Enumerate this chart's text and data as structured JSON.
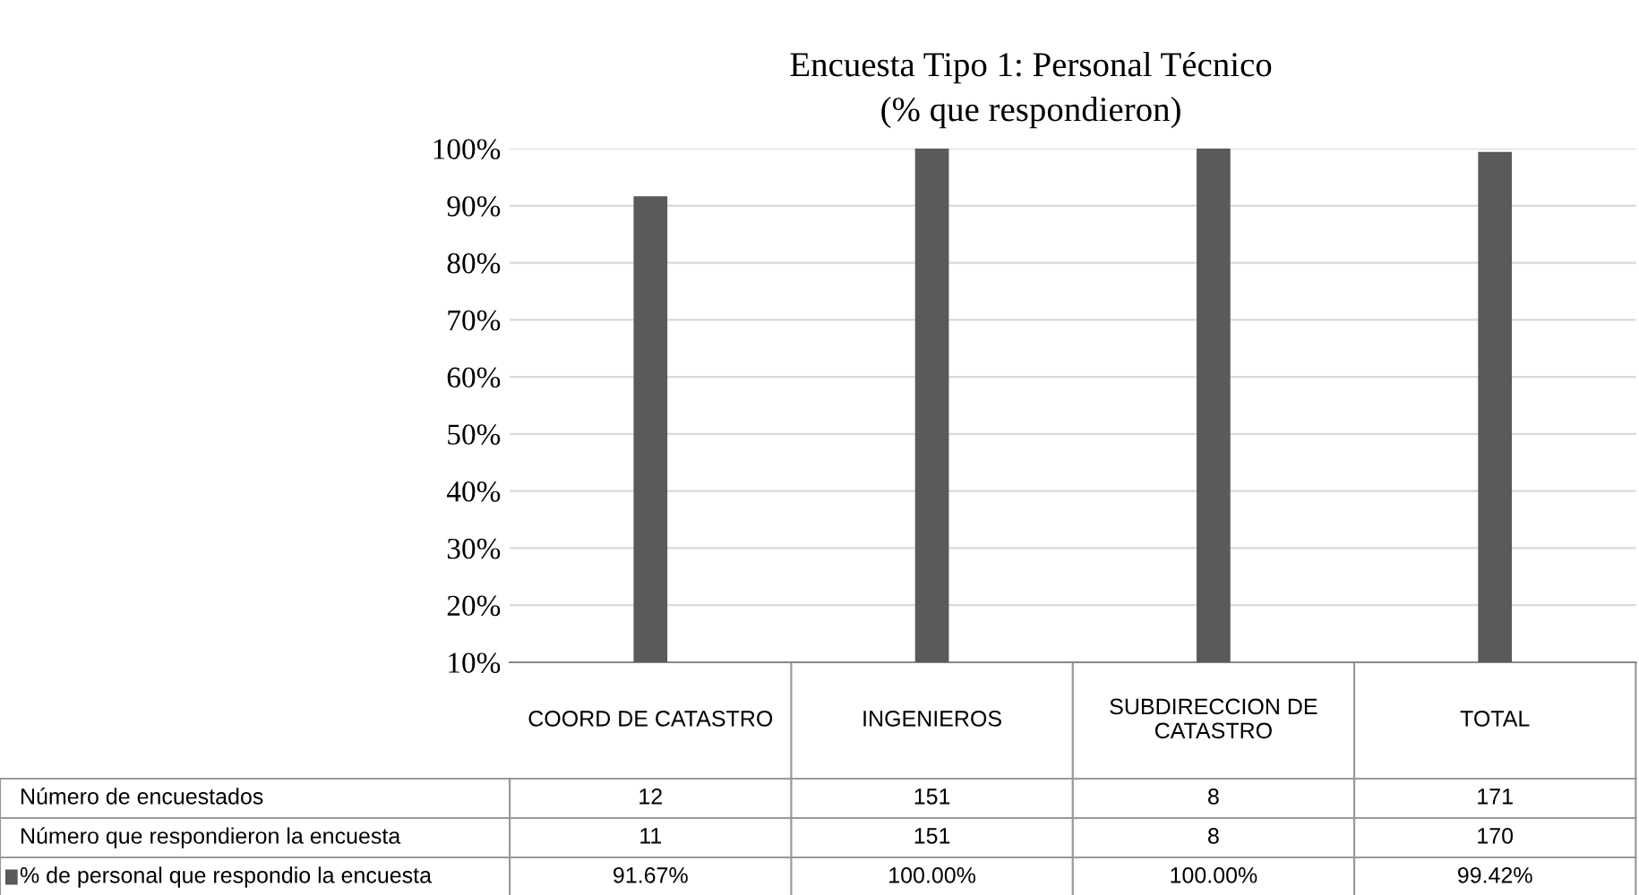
{
  "chart_data": {
    "type": "bar",
    "title": "Encuesta Tipo 1: Personal Técnico",
    "subtitle": "(% que respondieron)",
    "categories": [
      "COORD DE CATASTRO",
      "INGENIEROS",
      "SUBDIRECCION DE\nCATASTRO",
      "TOTAL"
    ],
    "series": [
      {
        "name": "% de personal que respondio la encuesta",
        "color": "#5a5a5a",
        "values": [
          91.67,
          100,
          100,
          99.42
        ],
        "value_labels": [
          "91.67%",
          "100.00%",
          "100.00%",
          "99.42%"
        ]
      }
    ],
    "ylim": [
      10,
      100
    ],
    "yticks": [
      {
        "value": 10,
        "label": "10%"
      },
      {
        "value": 20,
        "label": "20%"
      },
      {
        "value": 30,
        "label": "30%"
      },
      {
        "value": 40,
        "label": "40%"
      },
      {
        "value": 50,
        "label": "50%"
      },
      {
        "value": 60,
        "label": "60%"
      },
      {
        "value": 70,
        "label": "70%"
      },
      {
        "value": 80,
        "label": "80%"
      },
      {
        "value": 90,
        "label": "90%"
      },
      {
        "value": 100,
        "label": "100%"
      }
    ],
    "grid": "y",
    "annotations": [
      "Número de encuestados",
      "12",
      "151",
      "8",
      "171",
      "Número que respondieron la encuesta",
      "11",
      "151",
      "8",
      "170"
    ]
  }
}
